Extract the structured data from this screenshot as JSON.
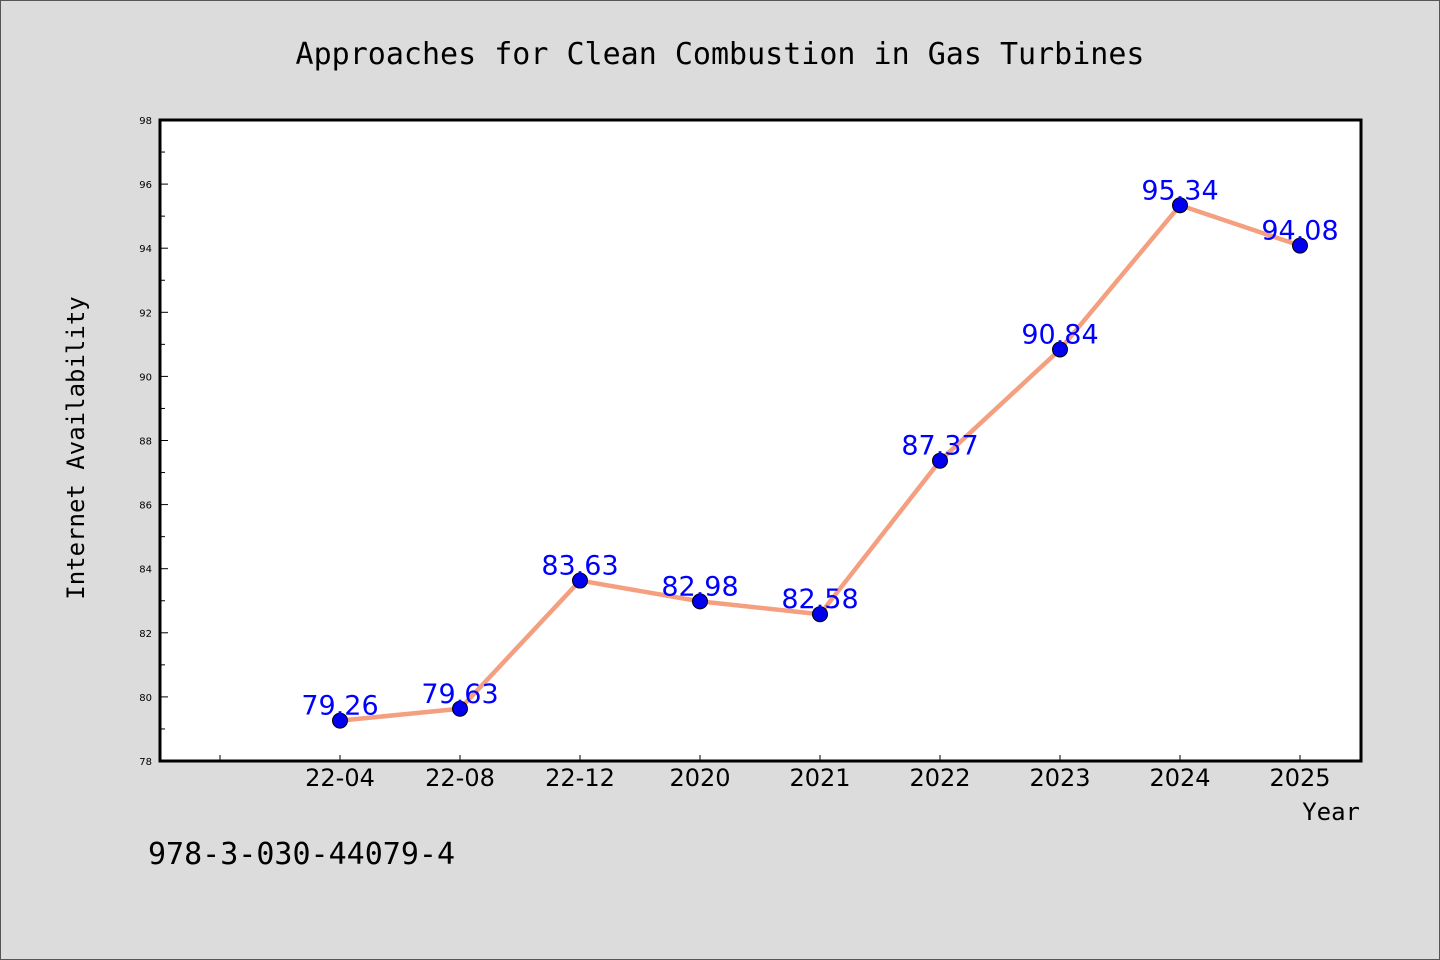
{
  "chart_data": {
    "type": "line",
    "title": "Approaches for Clean Combustion in Gas Turbines",
    "xlabel": "Year",
    "ylabel": "Internet Availability",
    "categories": [
      "22-04",
      "22-08",
      "22-12",
      "2020",
      "2021",
      "2022",
      "2023",
      "2024",
      "2025"
    ],
    "series": [
      {
        "values": [
          79.26,
          79.63,
          83.63,
          82.98,
          82.58,
          87.37,
          90.84,
          95.34,
          94.08
        ],
        "value_labels": [
          "79.26",
          "79.63",
          "83.63",
          "82.98",
          "82.58",
          "87.37",
          "90.84",
          "95.34",
          "94.08"
        ],
        "line_color": "#f4a080",
        "marker_color": "#0000ee",
        "label_color": "#0000ff"
      }
    ],
    "ylim": [
      78,
      98
    ],
    "yticks": [
      "78",
      "80",
      "82",
      "84",
      "86",
      "88",
      "90",
      "92",
      "94",
      "96",
      "98"
    ],
    "grid": false,
    "legend": "none"
  },
  "footnote": "978-3-030-44079-4",
  "colors": {
    "background": "#dcdcdc",
    "plot_background": "#ffffff",
    "axis": "#000000"
  }
}
